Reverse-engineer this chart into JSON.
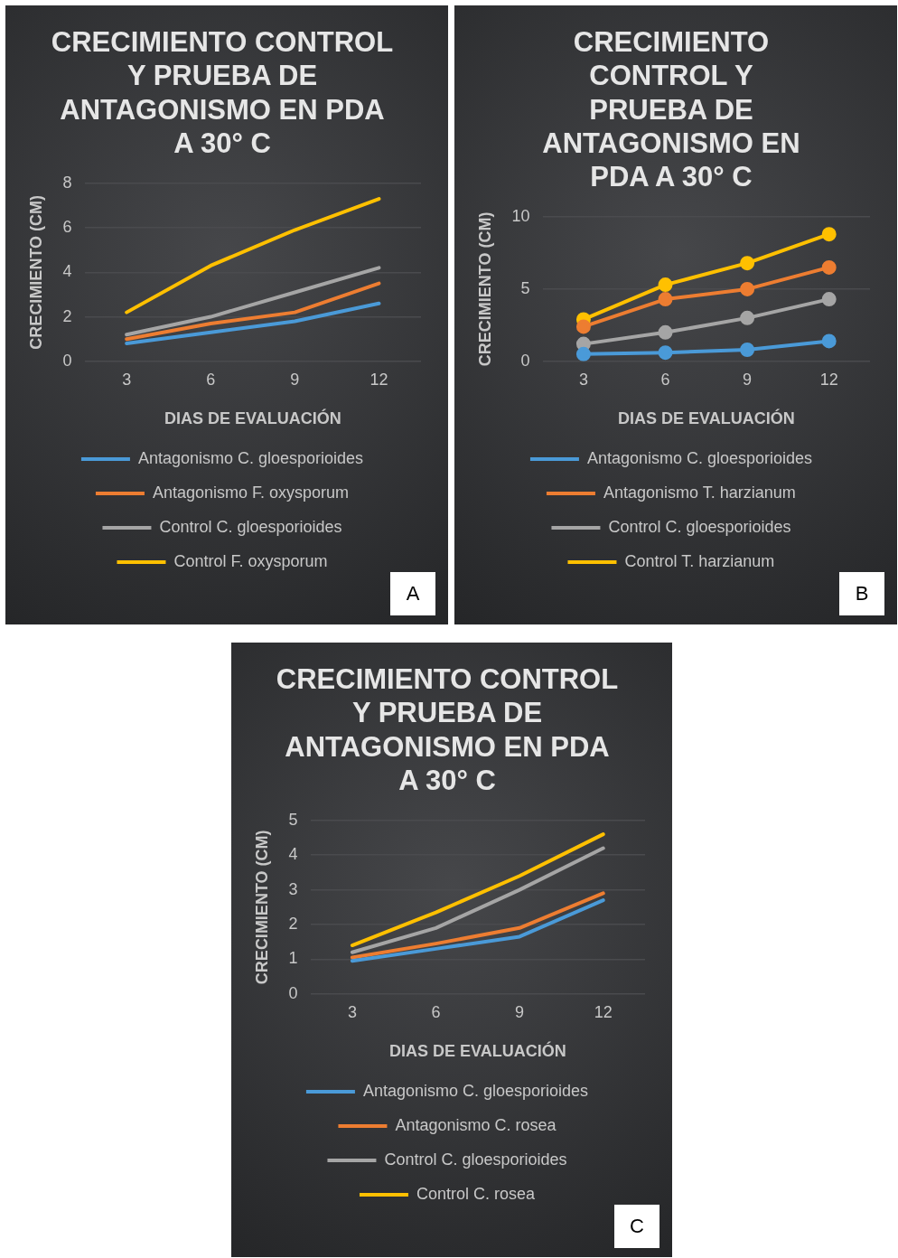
{
  "chart_data": [
    {
      "type": "line",
      "title": "CRECIMIENTO CONTROL Y PRUEBA DE ANTAGONISMO EN PDA A 30° C",
      "xlabel": "DIAS DE EVALUACIÓN",
      "ylabel": "CRECIMIENTO (CM)",
      "categories": [
        "3",
        "6",
        "9",
        "12"
      ],
      "ylim": [
        0,
        8
      ],
      "yticks": [
        0,
        2,
        4,
        6,
        8
      ],
      "grid": "y",
      "legend": "bottom",
      "marker": "none",
      "annotations": [
        "A"
      ],
      "series": [
        {
          "name": "Antagonismo C. gloesporioides",
          "color": "#4a9ad8",
          "values": [
            0.8,
            1.3,
            1.8,
            2.6
          ]
        },
        {
          "name": "Antagonismo F. oxysporum",
          "color": "#ed7d31",
          "values": [
            1.0,
            1.7,
            2.2,
            3.5
          ]
        },
        {
          "name": "Control C. gloesporioides",
          "color": "#a5a5a5",
          "values": [
            1.2,
            2.0,
            3.1,
            4.2
          ]
        },
        {
          "name": "Control F. oxysporum",
          "color": "#ffc000",
          "values": [
            2.2,
            4.3,
            5.9,
            7.3
          ]
        }
      ]
    },
    {
      "type": "line",
      "title": "CRECIMIENTO CONTROL Y PRUEBA DE ANTAGONISMO EN PDA A 30° C",
      "xlabel": "DIAS DE EVALUACIÓN",
      "ylabel": "CRECIMIENTO (CM)",
      "categories": [
        "3",
        "6",
        "9",
        "12"
      ],
      "ylim": [
        0,
        10
      ],
      "yticks": [
        0,
        5,
        10
      ],
      "grid": "y",
      "legend": "bottom",
      "marker": "circle",
      "annotations": [
        "B"
      ],
      "series": [
        {
          "name": "Antagonismo C. gloesporioides",
          "color": "#4a9ad8",
          "values": [
            0.5,
            0.6,
            0.8,
            1.4
          ]
        },
        {
          "name": "Antagonismo T. harzianum",
          "color": "#ed7d31",
          "values": [
            2.4,
            4.3,
            5.0,
            6.5
          ]
        },
        {
          "name": "Control C. gloesporioides",
          "color": "#a5a5a5",
          "values": [
            1.2,
            2.0,
            3.0,
            4.3
          ]
        },
        {
          "name": "Control T. harzianum",
          "color": "#ffc000",
          "values": [
            2.9,
            5.3,
            6.8,
            8.8
          ]
        }
      ]
    },
    {
      "type": "line",
      "title": "CRECIMIENTO CONTROL Y PRUEBA DE ANTAGONISMO EN PDA A 30° C",
      "xlabel": "DIAS DE EVALUACIÓN",
      "ylabel": "CRECIMIENTO (CM)",
      "categories": [
        "3",
        "6",
        "9",
        "12"
      ],
      "ylim": [
        0,
        5
      ],
      "yticks": [
        0,
        1,
        2,
        3,
        4,
        5
      ],
      "grid": "y",
      "legend": "bottom",
      "marker": "none",
      "annotations": [
        "C"
      ],
      "series": [
        {
          "name": "Antagonismo C. gloesporioides",
          "color": "#4a9ad8",
          "values": [
            0.95,
            1.3,
            1.65,
            2.7
          ]
        },
        {
          "name": "Antagonismo C. rosea",
          "color": "#ed7d31",
          "values": [
            1.05,
            1.45,
            1.9,
            2.9
          ]
        },
        {
          "name": "Control C. gloesporioides",
          "color": "#a5a5a5",
          "values": [
            1.2,
            1.9,
            3.0,
            4.2
          ]
        },
        {
          "name": "Control C. rosea",
          "color": "#ffc000",
          "values": [
            1.4,
            2.35,
            3.4,
            4.6
          ]
        }
      ]
    }
  ]
}
